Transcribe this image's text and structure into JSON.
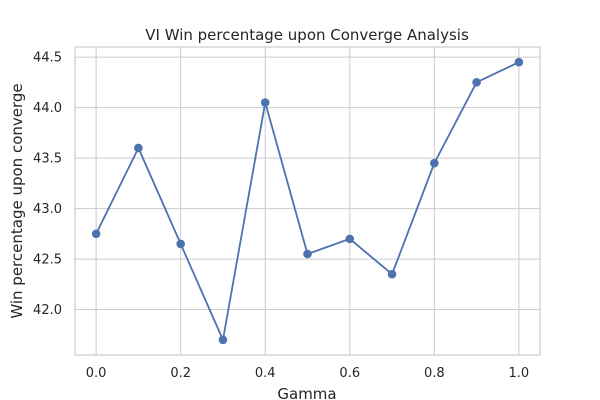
{
  "chart_data": {
    "type": "line",
    "title": "VI Win percentage upon Converge Analysis",
    "xlabel": "Gamma",
    "ylabel": "Win percentage upon converge",
    "x": [
      0.0,
      0.1,
      0.2,
      0.3,
      0.4,
      0.5,
      0.6,
      0.7,
      0.8,
      0.9,
      1.0
    ],
    "series": [
      {
        "values": [
          42.75,
          43.6,
          42.65,
          41.7,
          44.05,
          42.55,
          42.7,
          42.35,
          43.45,
          44.25,
          44.45
        ]
      }
    ],
    "xticks": [
      "0.0",
      "0.2",
      "0.4",
      "0.6",
      "0.8",
      "1.0"
    ],
    "yticks": [
      "42.0",
      "42.5",
      "43.0",
      "43.5",
      "44.0",
      "44.5"
    ],
    "xlim": [
      -0.05,
      1.05
    ],
    "ylim": [
      41.55,
      44.6
    ],
    "grid": true,
    "line_color": "#4c72b0",
    "grid_color": "#cccccc",
    "spine_color": "#cccccc"
  }
}
